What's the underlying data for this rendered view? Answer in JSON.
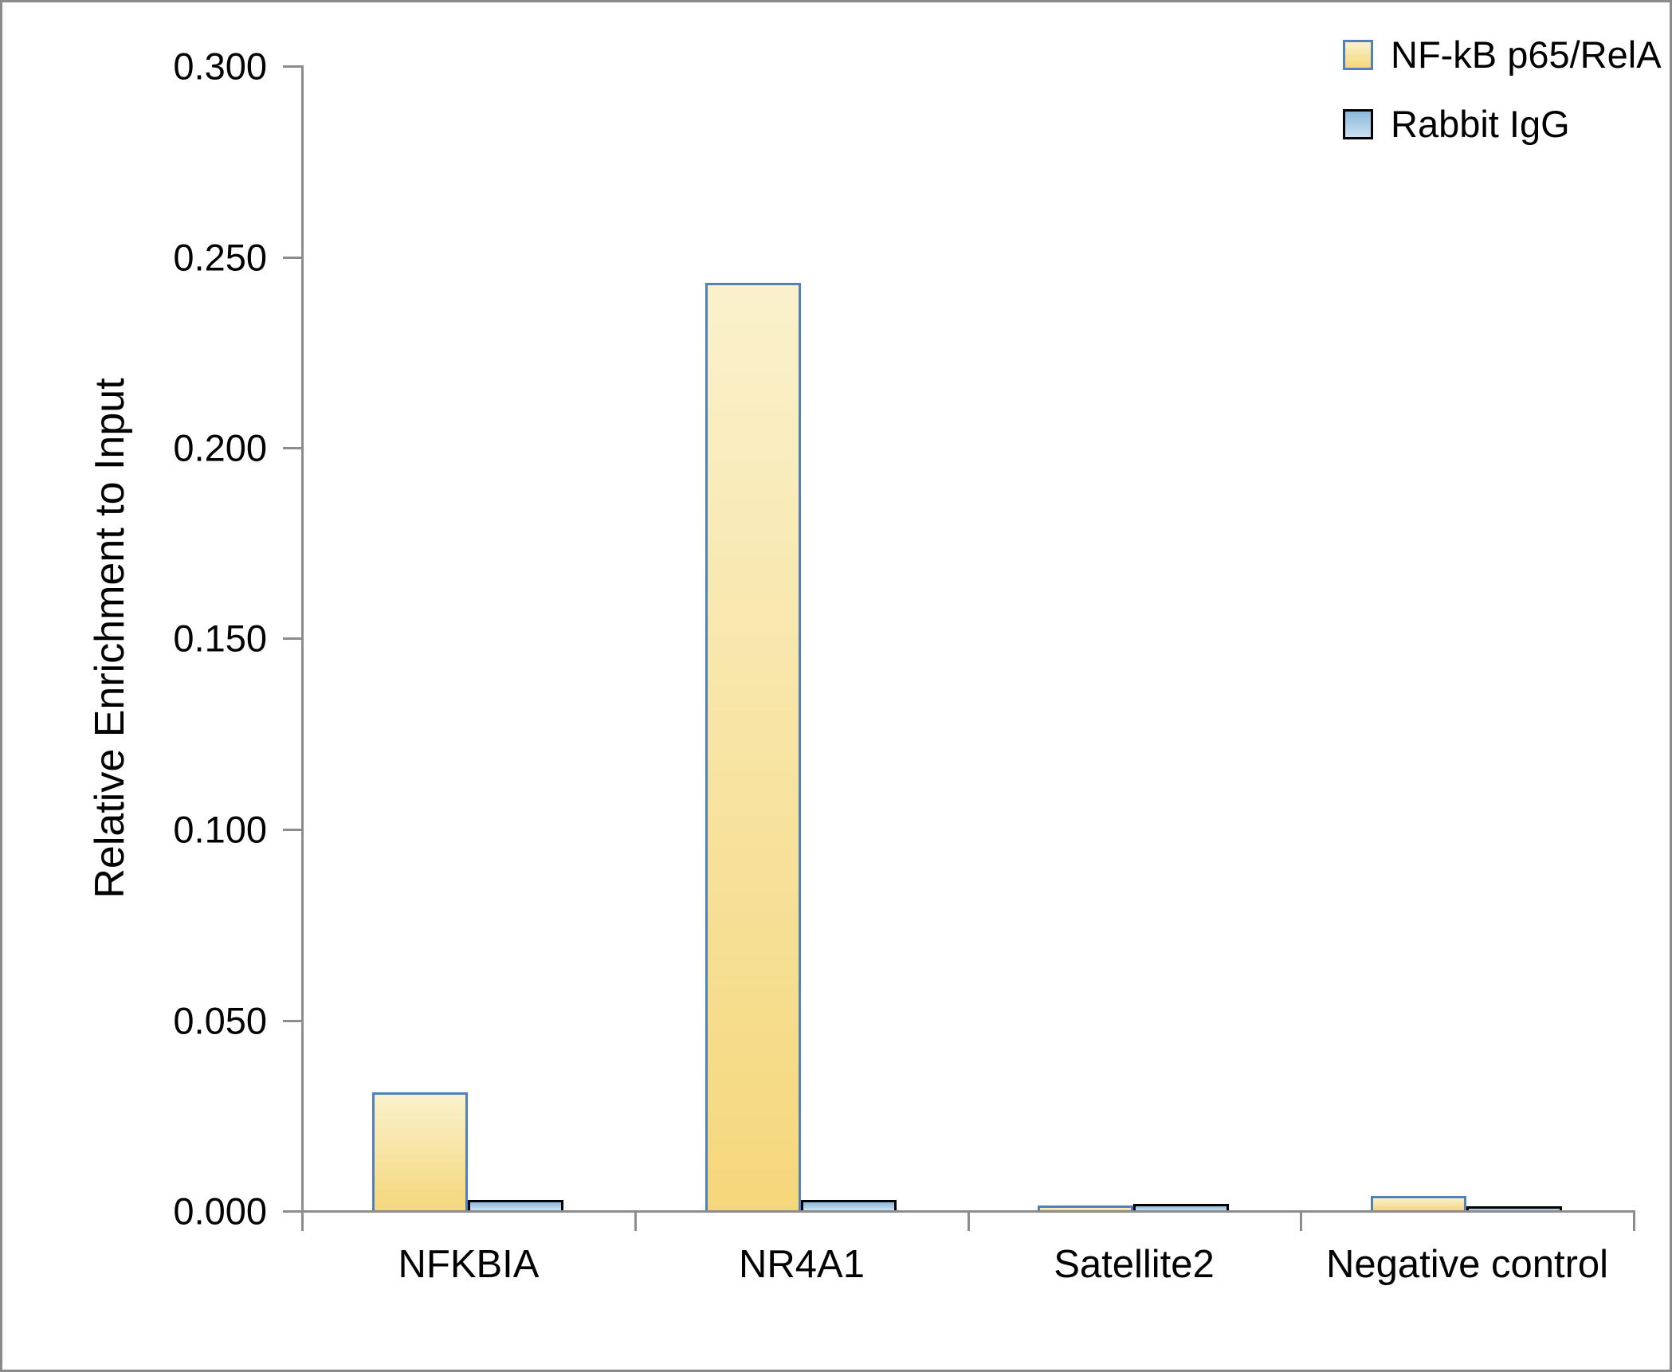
{
  "chart_data": {
    "type": "bar",
    "title": "",
    "xlabel": "",
    "ylabel": "Relative Enrichment to Input",
    "categories": [
      "NFKBIA",
      "NR4A1",
      "Satellite2",
      "Negative control"
    ],
    "series": [
      {
        "name": "NF-kB p65/RelA",
        "values": [
          0.031,
          0.243,
          0.0013,
          0.0038
        ],
        "fill_top": "#faf1cc",
        "fill_bottom": "#f5d77b",
        "border_color": "#4f81bd"
      },
      {
        "name": "Rabbit IgG",
        "values": [
          0.0027,
          0.0028,
          0.0017,
          0.0011
        ],
        "fill_top": "#8bb9dc",
        "fill_bottom": "#cbe2f1",
        "border_color": "#000000"
      }
    ],
    "ylim": [
      0.0,
      0.3
    ],
    "ytick_step": 0.05,
    "ytick_labels": [
      "0.000",
      "0.050",
      "0.100",
      "0.150",
      "0.200",
      "0.250",
      "0.300"
    ],
    "grid": false,
    "legend_position": "top-right"
  },
  "colors": {
    "axis": "#8c8c8c",
    "text": "#000000",
    "background": "#ffffff",
    "frame_border": "#8a8a8a"
  }
}
